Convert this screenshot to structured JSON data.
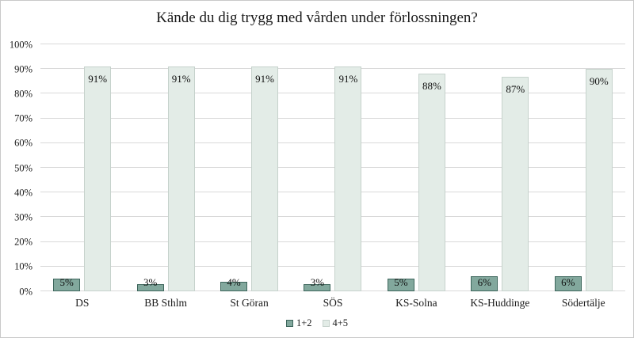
{
  "chart_data": {
    "type": "bar",
    "title": "Kände du dig trygg med vården under förlossningen?",
    "categories": [
      "DS",
      "BB Sthlm",
      "St Göran",
      "SÖS",
      "KS-Solna",
      "KS-Huddinge",
      "Södertälje"
    ],
    "series": [
      {
        "name": "1+2",
        "values": [
          5,
          3,
          4,
          3,
          5,
          6,
          6
        ],
        "fill": "#82A89D",
        "border": "#3D665C",
        "label_placement": "outside-end"
      },
      {
        "name": "4+5",
        "values": [
          91,
          91,
          91,
          91,
          88,
          87,
          90
        ],
        "fill": "#E3ECE7",
        "border": "#C6D2CC",
        "label_placement": "inside-end"
      }
    ],
    "xlabel": "",
    "ylabel": "",
    "ylim": [
      0,
      100
    ],
    "yticks": [
      0,
      10,
      20,
      30,
      40,
      50,
      60,
      70,
      80,
      90,
      100
    ],
    "ytick_suffix": "%",
    "value_label_suffix": "%",
    "grid": "horizontal",
    "gridline_color": "#D9D9D9",
    "legend_position": "bottom-center",
    "background_color": "#FFFFFF",
    "frame_border_color": "#C9C9C9"
  }
}
